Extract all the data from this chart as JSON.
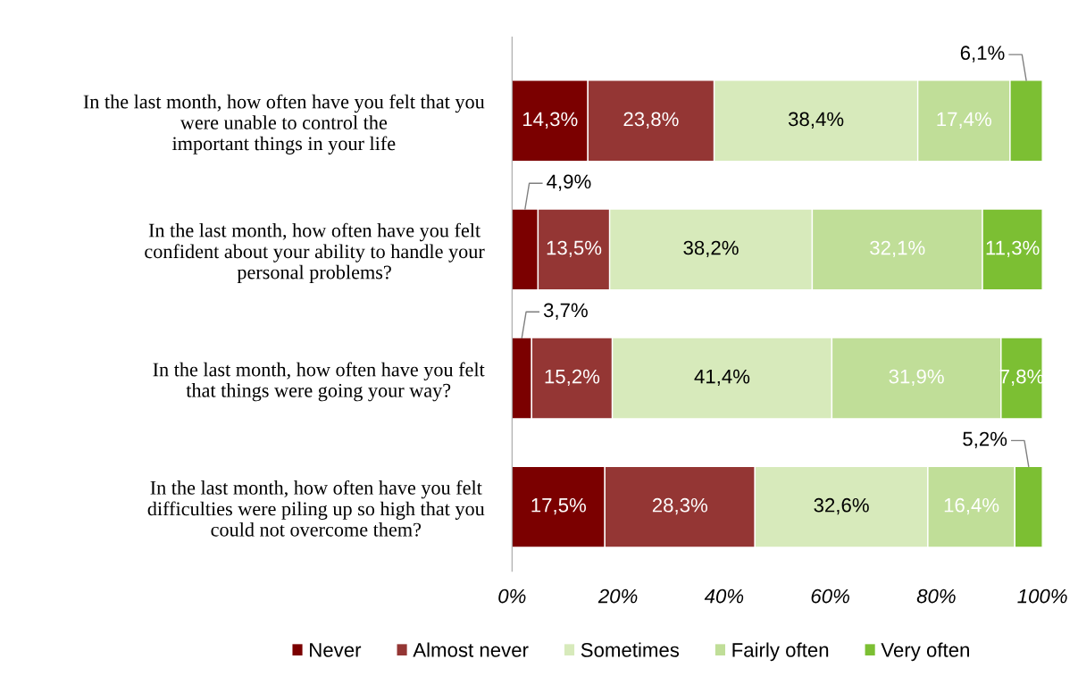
{
  "chart_data": {
    "type": "bar",
    "orientation": "horizontal",
    "stacked": true,
    "categories": [
      "In the last month, how often have you felt that you\nwere unable to control the\nimportant things in your life",
      "In the last month, how often have you felt\nconfident about your ability to handle your\npersonal problems?",
      "In the last month, how often have you felt\nthat things were going your way?",
      "In the last month, how often have you felt\ndifficulties were piling up so high that you\ncould not overcome them?"
    ],
    "series": [
      {
        "name": "Never",
        "color": "#7b0000",
        "values": [
          14.3,
          4.9,
          3.7,
          17.5
        ],
        "value_labels": [
          "14,3%",
          "4,9%",
          "3,7%",
          "17,5%"
        ]
      },
      {
        "name": "Almost never",
        "color": "#943634",
        "values": [
          23.8,
          13.5,
          15.2,
          28.3
        ],
        "value_labels": [
          "23,8%",
          "13,5%",
          "15,2%",
          "28,3%"
        ]
      },
      {
        "name": "Sometimes",
        "color": "#d7eabb",
        "values": [
          38.4,
          38.2,
          41.4,
          32.6
        ],
        "value_labels": [
          "38,4%",
          "38,2%",
          "41,4%",
          "32,6%"
        ]
      },
      {
        "name": "Fairly often",
        "color": "#c0de98",
        "values": [
          17.4,
          32.1,
          31.9,
          16.4
        ],
        "value_labels": [
          "17,4%",
          "32,1%",
          "31,9%",
          "16,4%"
        ]
      },
      {
        "name": "Very often",
        "color": "#7cbf33",
        "values": [
          6.1,
          11.3,
          7.8,
          5.2
        ],
        "value_labels": [
          "6,1%",
          "11,3%",
          "7,8%",
          "5,2%"
        ]
      }
    ],
    "xlim": [
      0,
      100
    ],
    "xticks": [
      {
        "value": 0,
        "label": "0%"
      },
      {
        "value": 20,
        "label": "20%"
      },
      {
        "value": 40,
        "label": "40%"
      },
      {
        "value": 60,
        "label": "60%"
      },
      {
        "value": 80,
        "label": "80%"
      },
      {
        "value": 100,
        "label": "100%"
      }
    ],
    "grid": false,
    "legend": "bottom"
  }
}
